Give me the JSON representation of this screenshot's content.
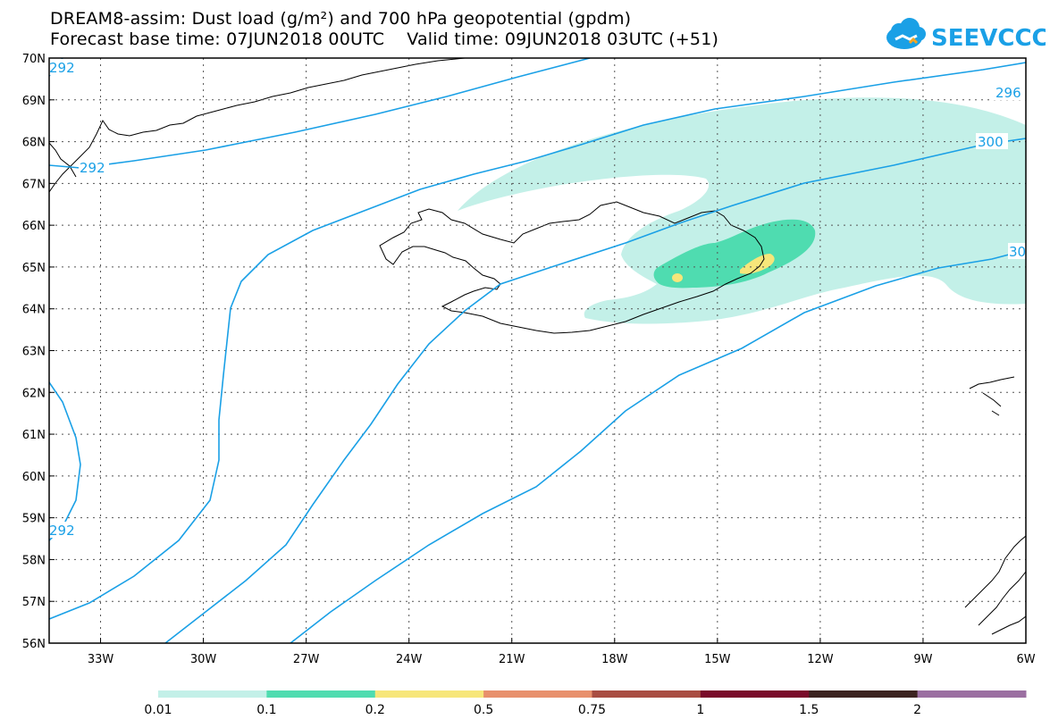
{
  "title": {
    "line1": "DREAM8-assim: Dust load (g/m²) and 700 hPa geopotential (gpdm)",
    "line2": "Forecast base time: 07JUN2018 00UTC    Valid time: 09JUN2018 03UTC (+51)"
  },
  "logo": {
    "text": "SEEVCCC",
    "icon": "cloud-icon",
    "color": "#1aa0e6"
  },
  "axes": {
    "lat_labels": [
      "70N",
      "69N",
      "68N",
      "67N",
      "66N",
      "65N",
      "64N",
      "63N",
      "62N",
      "61N",
      "60N",
      "59N",
      "58N",
      "57N",
      "56N"
    ],
    "lon_labels": [
      "33W",
      "30W",
      "27W",
      "24W",
      "21W",
      "18W",
      "15W",
      "12W",
      "9W",
      "6W"
    ],
    "lat_range": [
      56,
      70
    ],
    "lon_range": [
      -34.5,
      -6
    ]
  },
  "contours": {
    "color": "#1aa0e6",
    "labels": [
      "292",
      "292",
      "292",
      "296",
      "300",
      "30"
    ]
  },
  "legend": {
    "colors": [
      "#c3f0e8",
      "#4fdcb0",
      "#f7e67a",
      "#e8906c",
      "#a94d42",
      "#7a0a2a",
      "#3c2320",
      "#9b6fa1"
    ],
    "labels": [
      "0.01",
      "0.1",
      "0.2",
      "0.5",
      "0.75",
      "1",
      "1.5",
      "2"
    ]
  }
}
